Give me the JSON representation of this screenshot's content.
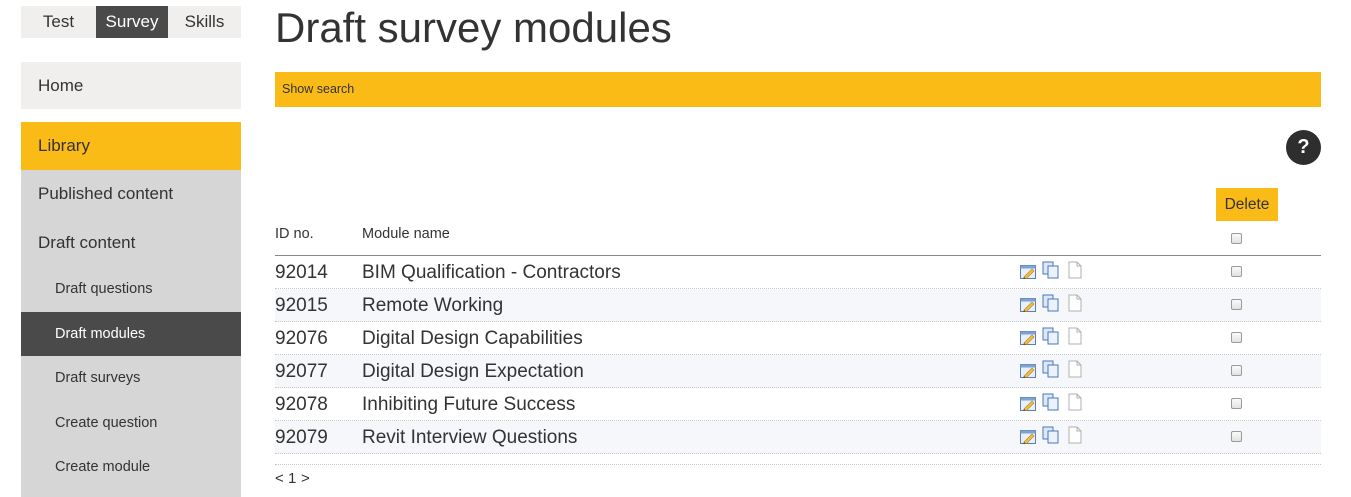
{
  "top_tabs": [
    "Test",
    "Survey",
    "Skills"
  ],
  "sidebar": {
    "home": "Home",
    "library": "Library",
    "items": [
      {
        "label": "Published content"
      },
      {
        "label": "Draft content"
      },
      {
        "label": "Draft questions"
      },
      {
        "label": "Draft modules"
      },
      {
        "label": "Draft surveys"
      },
      {
        "label": "Create question"
      },
      {
        "label": "Create module"
      }
    ]
  },
  "page_title": "Draft survey modules",
  "search": {
    "toggle_label": "Show search"
  },
  "help_icon_label": "?",
  "delete_label": "Delete",
  "table": {
    "headers": {
      "id": "ID no.",
      "name": "Module name"
    },
    "rows": [
      {
        "id": "92014",
        "name": "BIM Qualification - Contractors"
      },
      {
        "id": "92015",
        "name": "Remote Working"
      },
      {
        "id": "92076",
        "name": "Digital Design Capabilities"
      },
      {
        "id": "92077",
        "name": "Digital Design Expectation"
      },
      {
        "id": "92078",
        "name": "Inhibiting Future Success"
      },
      {
        "id": "92079",
        "name": "Revit Interview Questions"
      }
    ]
  },
  "pagination": {
    "prev": "<",
    "page": "1",
    "next": ">"
  },
  "colors": {
    "accent": "#fbbb17",
    "active": "#4a4a4a",
    "panel": "#d6d6d6",
    "light": "#f0efed"
  },
  "icons": {
    "help": "question-icon",
    "row_actions": [
      "edit-icon",
      "copy-icon",
      "document-icon"
    ]
  }
}
